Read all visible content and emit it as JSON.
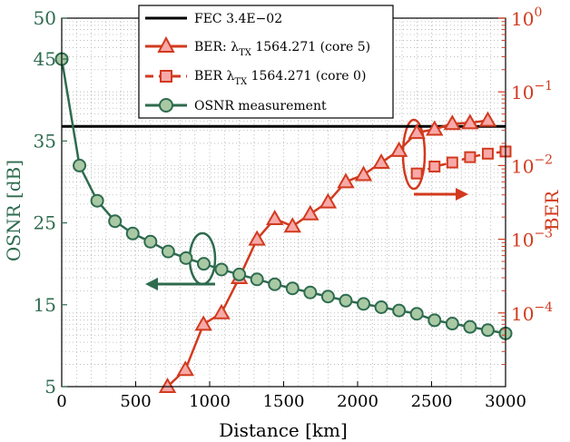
{
  "chart_data": {
    "type": "line",
    "xlabel": "Distance [km]",
    "ylabel_left": "OSNR [dB]",
    "ylabel_right": "BER",
    "xlim": [
      0,
      3000
    ],
    "ylim_left": [
      5,
      50
    ],
    "ylim_right": [
      1e-05,
      1
    ],
    "right_axis_scale": "log",
    "grid": true,
    "legend_position": "top-center",
    "x_tick_labels": [
      "0",
      "500",
      "1000",
      "1500",
      "2000",
      "2500",
      "3000"
    ],
    "y_left_tick_labels": [
      "5",
      "15",
      "25",
      "35",
      "45",
      "50"
    ],
    "y_right_tick_labels": [
      {
        "base": "10",
        "exp": "−4"
      },
      {
        "base": "10",
        "exp": "−3"
      },
      {
        "base": "10",
        "exp": "−2"
      },
      {
        "base": "10",
        "exp": "−1"
      },
      {
        "base": "10",
        "exp": "0"
      }
    ],
    "legend": {
      "fec_label": "FEC 3.4E−02",
      "s1_prefix": "BER: λ",
      "s1_sub": "TX",
      "s1_suffix": " 1564.271 (core 5)",
      "s2_prefix": "BER λ",
      "s2_sub": "TX",
      "s2_suffix": " 1564.271 (core 0)",
      "s3_label": "OSNR measurement"
    },
    "colors": {
      "osnr": "#2e6b4f",
      "osnr_fill": "#a9c9a4",
      "ber": "#d23a1e",
      "ber_fill": "#f7a9a8",
      "fec": "#000000"
    },
    "fec_threshold": {
      "name": "FEC 3.4E−02",
      "y": 0.034
    },
    "series": [
      {
        "name": "BER: λTX 1564.271 (core 5)",
        "axis": "right",
        "x": [
          715,
          836,
          958,
          1080,
          1200,
          1320,
          1440,
          1560,
          1680,
          1800,
          1920,
          2040,
          2160,
          2280,
          2400,
          2520,
          2640,
          2760,
          2880
        ],
        "y": [
          1e-05,
          1.7e-05,
          7e-05,
          0.0001,
          0.0003,
          0.001,
          0.0019,
          0.0015,
          0.0022,
          0.0032,
          0.006,
          0.0075,
          0.011,
          0.016,
          0.028,
          0.031,
          0.037,
          0.038,
          0.041
        ]
      },
      {
        "name": "BER λTX 1564.271 (core 0)",
        "axis": "right",
        "x": [
          2400,
          2520,
          2640,
          2760,
          2880,
          3000
        ],
        "y": [
          0.0078,
          0.0097,
          0.011,
          0.013,
          0.0145,
          0.0155
        ]
      },
      {
        "name": "OSNR measurement",
        "axis": "left",
        "x": [
          0,
          120,
          240,
          360,
          480,
          600,
          720,
          840,
          960,
          1080,
          1200,
          1320,
          1440,
          1560,
          1680,
          1800,
          1920,
          2040,
          2160,
          2280,
          2400,
          2520,
          2640,
          2760,
          2880,
          3000
        ],
        "y": [
          45,
          32,
          27.7,
          25.2,
          23.7,
          22.7,
          21.5,
          20.7,
          20,
          19.3,
          18.7,
          18.1,
          17.5,
          17,
          16.5,
          16,
          15.5,
          15.1,
          14.7,
          14.3,
          13.9,
          13.1,
          12.7,
          12.3,
          11.9,
          11.5
        ]
      }
    ]
  }
}
